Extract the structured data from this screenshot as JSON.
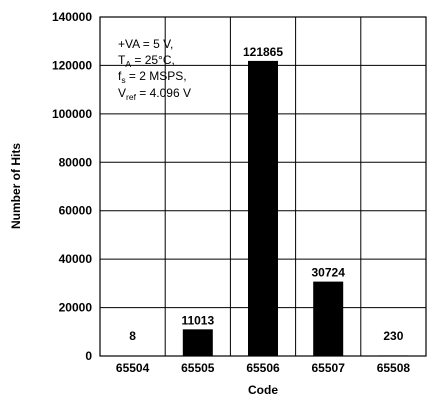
{
  "chart_data": {
    "type": "bar",
    "categories": [
      "65504",
      "65505",
      "65506",
      "65507",
      "65508"
    ],
    "values": [
      8,
      11013,
      121865,
      30724,
      230
    ],
    "data_labels": [
      "8",
      "11013",
      "121865",
      "30724",
      "230"
    ],
    "xlabel": "Code",
    "ylabel": "Number of Hits",
    "ylim": [
      0,
      140000
    ],
    "yticks": [
      0,
      20000,
      40000,
      60000,
      80000,
      100000,
      120000,
      140000
    ],
    "ytick_labels": [
      "0",
      "20000",
      "40000",
      "60000",
      "80000",
      "100000",
      "120000",
      "140000"
    ],
    "grid": true,
    "bar_color": "#000000",
    "annotation": {
      "line1": "+VA = 5 V,",
      "line2_main": "T",
      "line2_sub": "A",
      "line2_rest": " = 25°C,",
      "line3_main": "f",
      "line3_sub": "s",
      "line3_rest": " = 2 MSPS,",
      "line4_main": "V",
      "line4_sub": "ref",
      "line4_rest": "  = 4.096 V"
    }
  }
}
